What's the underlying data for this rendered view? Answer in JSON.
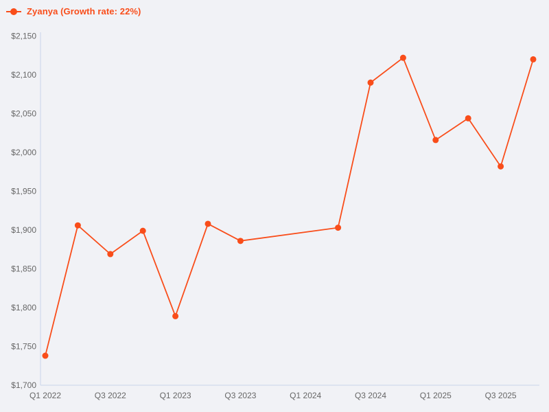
{
  "chart_data": {
    "type": "line",
    "legend": {
      "label": "Zyanya (Growth rate: 22%)",
      "position": "top-left"
    },
    "series": [
      {
        "name": "Zyanya",
        "growth_rate": "22%",
        "color": "#f94d1a",
        "points": [
          {
            "x": "Q1 2022",
            "y": 1738
          },
          {
            "x": "Q2 2022",
            "y": 1906
          },
          {
            "x": "Q3 2022",
            "y": 1869
          },
          {
            "x": "Q4 2022",
            "y": 1899
          },
          {
            "x": "Q1 2023",
            "y": 1789
          },
          {
            "x": "Q2 2023",
            "y": 1908
          },
          {
            "x": "Q3 2023",
            "y": 1886
          },
          {
            "x": "Q2 2024",
            "y": 1903
          },
          {
            "x": "Q3 2024",
            "y": 2090
          },
          {
            "x": "Q4 2024",
            "y": 2122
          },
          {
            "x": "Q1 2025",
            "y": 2016
          },
          {
            "x": "Q2 2025",
            "y": 2044
          },
          {
            "x": "Q3 2025",
            "y": 1982
          },
          {
            "x": "Q4 2025",
            "y": 2120
          }
        ]
      }
    ],
    "categories": [
      "Q1 2022",
      "Q2 2022",
      "Q3 2022",
      "Q4 2022",
      "Q1 2023",
      "Q2 2023",
      "Q3 2023",
      "Q4 2023",
      "Q1 2024",
      "Q2 2024",
      "Q3 2024",
      "Q4 2024",
      "Q1 2025",
      "Q2 2025",
      "Q3 2025",
      "Q4 2025"
    ],
    "gap_quarters_without_points": [
      "Q4 2023",
      "Q1 2024"
    ],
    "x_tick_labels": [
      "Q1 2022",
      "Q3 2022",
      "Q1 2023",
      "Q3 2023",
      "Q1 2024",
      "Q3 2024",
      "Q1 2025",
      "Q3 2025"
    ],
    "y_ticks": [
      {
        "value": 1700,
        "label": "$1,700"
      },
      {
        "value": 1750,
        "label": "$1,750"
      },
      {
        "value": 1800,
        "label": "$1,800"
      },
      {
        "value": 1850,
        "label": "$1,850"
      },
      {
        "value": 1900,
        "label": "$1,900"
      },
      {
        "value": 1950,
        "label": "$1,950"
      },
      {
        "value": 2000,
        "label": "$2,000"
      },
      {
        "value": 2050,
        "label": "$2,050"
      },
      {
        "value": 2100,
        "label": "$2,100"
      },
      {
        "value": 2150,
        "label": "$2,150"
      }
    ],
    "ylim": [
      1700,
      2150
    ],
    "value_prefix": "$",
    "grid": false,
    "colors": {
      "background": "#f1f2f6",
      "axis": "#c9d4ea",
      "tick_text": "#666666",
      "series": "#f94d1a"
    }
  }
}
